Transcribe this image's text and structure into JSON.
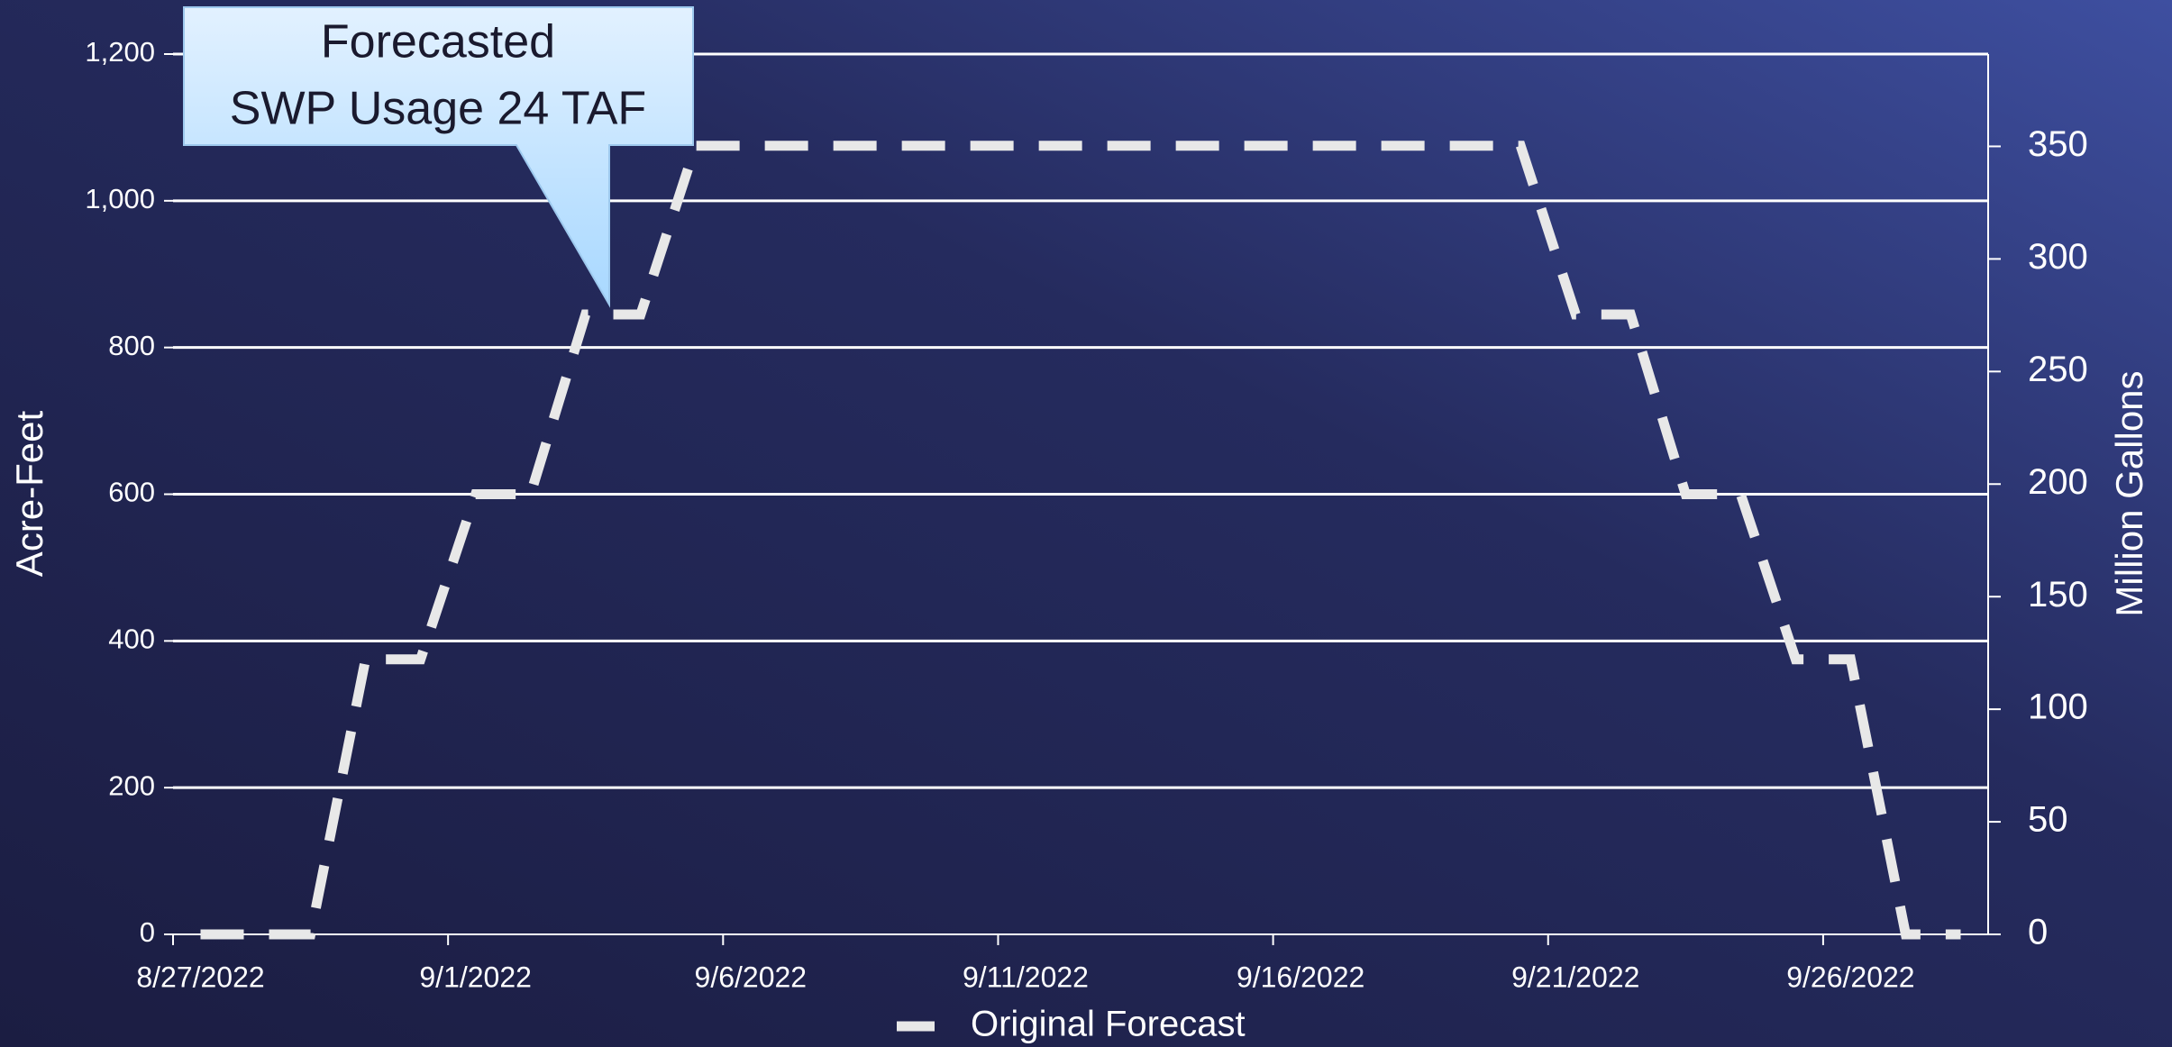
{
  "chart_data": {
    "type": "line",
    "categories": [
      "8/27/2022",
      null,
      null,
      null,
      null,
      "9/1/2022",
      null,
      null,
      null,
      null,
      "9/6/2022",
      null,
      null,
      null,
      null,
      "9/11/2022",
      null,
      null,
      null,
      null,
      "9/16/2022",
      null,
      null,
      null,
      null,
      "9/21/2022",
      null,
      null,
      null,
      null,
      "9/26/2022",
      null,
      null
    ],
    "series": [
      {
        "name": "Original Forecast",
        "color": "#e8e8e8",
        "values": [
          0,
          0,
          0,
          375,
          375,
          600,
          600,
          845,
          845,
          1075,
          1075,
          1075,
          1075,
          1075,
          1075,
          1075,
          1075,
          1075,
          1075,
          1075,
          1075,
          1075,
          1075,
          1075,
          1075,
          845,
          845,
          600,
          600,
          375,
          375,
          0,
          0
        ]
      }
    ],
    "ylabel": "Acre-Feet",
    "y2label": "Million Gallons",
    "ylim": [
      0,
      1200
    ],
    "yticks": [
      0,
      200,
      400,
      600,
      800,
      {
        "value": 1000,
        "label": "1,000"
      },
      {
        "value": 1200,
        "label": "1,200"
      }
    ],
    "y2lim": [
      0,
      391
    ],
    "y2ticks": [
      0,
      50,
      100,
      150,
      200,
      250,
      300,
      350
    ],
    "grid": true,
    "legend": "bottom",
    "annotation": [
      "Forecasted",
      "SWP Usage 24 TAF"
    ]
  }
}
